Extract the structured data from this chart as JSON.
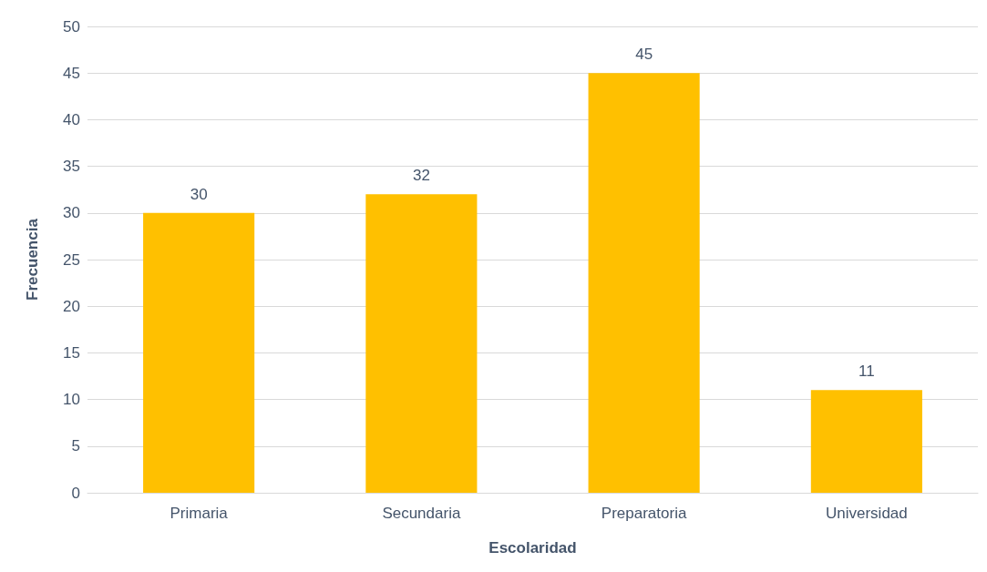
{
  "chart_data": {
    "type": "bar",
    "xlabel": "Escolaridad",
    "ylabel": "Frecuencia",
    "categories": [
      "Primaria",
      "Secundaria",
      "Preparatoria",
      "Universidad"
    ],
    "values": [
      30,
      32,
      45,
      11
    ],
    "color": "#ffc000",
    "ylim": [
      0,
      50
    ],
    "yticks": [
      0,
      5,
      10,
      15,
      20,
      25,
      30,
      35,
      40,
      45,
      50
    ],
    "grid": "y",
    "data_labels": true
  }
}
